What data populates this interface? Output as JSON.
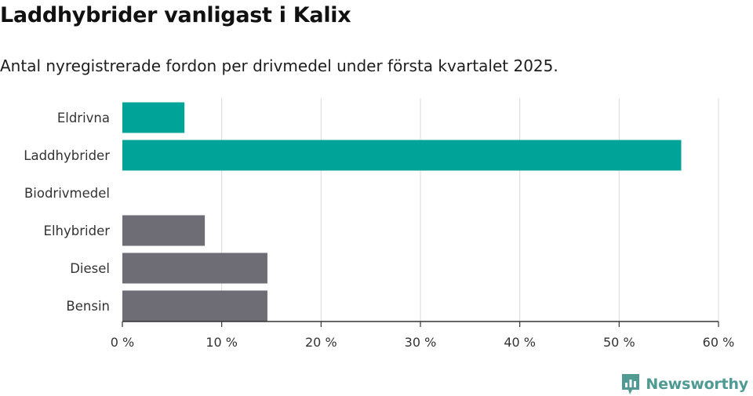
{
  "header": {
    "title": "Laddhybrider vanligast i Kalix",
    "subtitle": "Antal nyregistrerade fordon per drivmedel under första kvartalet 2025."
  },
  "brand": {
    "name": "Newsworthy",
    "color": "#4f9a93",
    "icon": "newsworthy-logo-icon"
  },
  "colors": {
    "highlight": "#00a398",
    "other": "#6e6d75",
    "grid": "#d9d9d9",
    "axis": "#333333"
  },
  "chart_data": {
    "type": "bar",
    "orientation": "horizontal",
    "categories": [
      "Eldrivna",
      "Laddhybrider",
      "Biodrivmedel",
      "Elhybrider",
      "Diesel",
      "Bensin"
    ],
    "values": [
      6.25,
      56.25,
      0,
      8.3,
      14.6,
      14.6
    ],
    "highlighted": [
      true,
      true,
      false,
      false,
      false,
      false
    ],
    "xlim": [
      0,
      60
    ],
    "xticks": [
      0,
      10,
      20,
      30,
      40,
      50,
      60
    ],
    "xtick_labels": [
      "0 %",
      "10 %",
      "20 %",
      "30 %",
      "40 %",
      "50 %",
      "60 %"
    ],
    "grid": true
  }
}
